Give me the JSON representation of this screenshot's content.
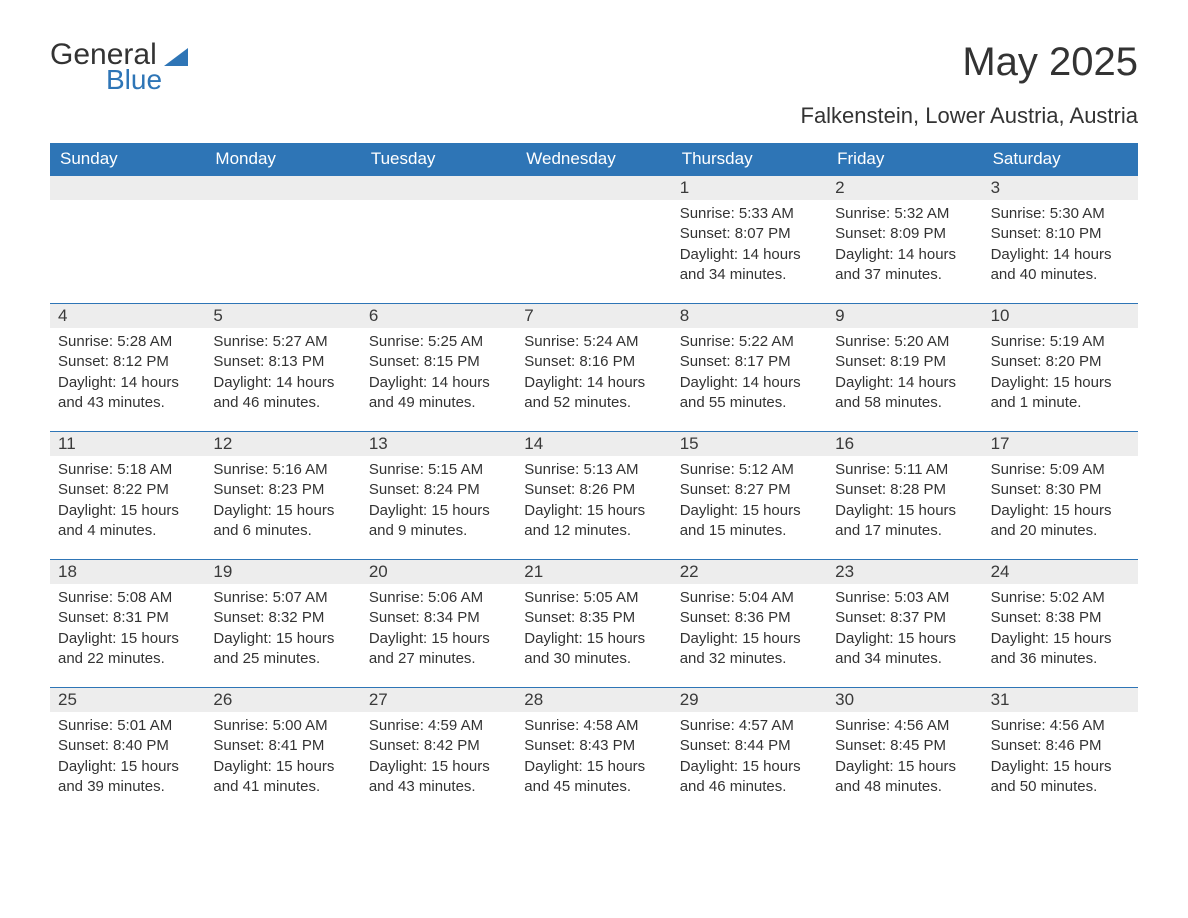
{
  "logo": {
    "word1": "General",
    "word2": "Blue"
  },
  "title": "May 2025",
  "location": "Falkenstein, Lower Austria, Austria",
  "colors": {
    "header_bg": "#2e75b6",
    "header_text": "#ffffff",
    "daynum_bg": "#ededed",
    "border": "#2e75b6",
    "body_bg": "#ffffff",
    "text": "#333333",
    "logo_accent": "#2e75b6"
  },
  "layout": {
    "columns": 7,
    "rows": 5,
    "cell_body_fontsize": 15,
    "header_fontsize": 17,
    "title_fontsize": 40,
    "location_fontsize": 22
  },
  "day_headers": [
    "Sunday",
    "Monday",
    "Tuesday",
    "Wednesday",
    "Thursday",
    "Friday",
    "Saturday"
  ],
  "weeks": [
    [
      {
        "n": "",
        "sunrise": "",
        "sunset": "",
        "daylight": ""
      },
      {
        "n": "",
        "sunrise": "",
        "sunset": "",
        "daylight": ""
      },
      {
        "n": "",
        "sunrise": "",
        "sunset": "",
        "daylight": ""
      },
      {
        "n": "",
        "sunrise": "",
        "sunset": "",
        "daylight": ""
      },
      {
        "n": "1",
        "sunrise": "Sunrise: 5:33 AM",
        "sunset": "Sunset: 8:07 PM",
        "daylight": "Daylight: 14 hours and 34 minutes."
      },
      {
        "n": "2",
        "sunrise": "Sunrise: 5:32 AM",
        "sunset": "Sunset: 8:09 PM",
        "daylight": "Daylight: 14 hours and 37 minutes."
      },
      {
        "n": "3",
        "sunrise": "Sunrise: 5:30 AM",
        "sunset": "Sunset: 8:10 PM",
        "daylight": "Daylight: 14 hours and 40 minutes."
      }
    ],
    [
      {
        "n": "4",
        "sunrise": "Sunrise: 5:28 AM",
        "sunset": "Sunset: 8:12 PM",
        "daylight": "Daylight: 14 hours and 43 minutes."
      },
      {
        "n": "5",
        "sunrise": "Sunrise: 5:27 AM",
        "sunset": "Sunset: 8:13 PM",
        "daylight": "Daylight: 14 hours and 46 minutes."
      },
      {
        "n": "6",
        "sunrise": "Sunrise: 5:25 AM",
        "sunset": "Sunset: 8:15 PM",
        "daylight": "Daylight: 14 hours and 49 minutes."
      },
      {
        "n": "7",
        "sunrise": "Sunrise: 5:24 AM",
        "sunset": "Sunset: 8:16 PM",
        "daylight": "Daylight: 14 hours and 52 minutes."
      },
      {
        "n": "8",
        "sunrise": "Sunrise: 5:22 AM",
        "sunset": "Sunset: 8:17 PM",
        "daylight": "Daylight: 14 hours and 55 minutes."
      },
      {
        "n": "9",
        "sunrise": "Sunrise: 5:20 AM",
        "sunset": "Sunset: 8:19 PM",
        "daylight": "Daylight: 14 hours and 58 minutes."
      },
      {
        "n": "10",
        "sunrise": "Sunrise: 5:19 AM",
        "sunset": "Sunset: 8:20 PM",
        "daylight": "Daylight: 15 hours and 1 minute."
      }
    ],
    [
      {
        "n": "11",
        "sunrise": "Sunrise: 5:18 AM",
        "sunset": "Sunset: 8:22 PM",
        "daylight": "Daylight: 15 hours and 4 minutes."
      },
      {
        "n": "12",
        "sunrise": "Sunrise: 5:16 AM",
        "sunset": "Sunset: 8:23 PM",
        "daylight": "Daylight: 15 hours and 6 minutes."
      },
      {
        "n": "13",
        "sunrise": "Sunrise: 5:15 AM",
        "sunset": "Sunset: 8:24 PM",
        "daylight": "Daylight: 15 hours and 9 minutes."
      },
      {
        "n": "14",
        "sunrise": "Sunrise: 5:13 AM",
        "sunset": "Sunset: 8:26 PM",
        "daylight": "Daylight: 15 hours and 12 minutes."
      },
      {
        "n": "15",
        "sunrise": "Sunrise: 5:12 AM",
        "sunset": "Sunset: 8:27 PM",
        "daylight": "Daylight: 15 hours and 15 minutes."
      },
      {
        "n": "16",
        "sunrise": "Sunrise: 5:11 AM",
        "sunset": "Sunset: 8:28 PM",
        "daylight": "Daylight: 15 hours and 17 minutes."
      },
      {
        "n": "17",
        "sunrise": "Sunrise: 5:09 AM",
        "sunset": "Sunset: 8:30 PM",
        "daylight": "Daylight: 15 hours and 20 minutes."
      }
    ],
    [
      {
        "n": "18",
        "sunrise": "Sunrise: 5:08 AM",
        "sunset": "Sunset: 8:31 PM",
        "daylight": "Daylight: 15 hours and 22 minutes."
      },
      {
        "n": "19",
        "sunrise": "Sunrise: 5:07 AM",
        "sunset": "Sunset: 8:32 PM",
        "daylight": "Daylight: 15 hours and 25 minutes."
      },
      {
        "n": "20",
        "sunrise": "Sunrise: 5:06 AM",
        "sunset": "Sunset: 8:34 PM",
        "daylight": "Daylight: 15 hours and 27 minutes."
      },
      {
        "n": "21",
        "sunrise": "Sunrise: 5:05 AM",
        "sunset": "Sunset: 8:35 PM",
        "daylight": "Daylight: 15 hours and 30 minutes."
      },
      {
        "n": "22",
        "sunrise": "Sunrise: 5:04 AM",
        "sunset": "Sunset: 8:36 PM",
        "daylight": "Daylight: 15 hours and 32 minutes."
      },
      {
        "n": "23",
        "sunrise": "Sunrise: 5:03 AM",
        "sunset": "Sunset: 8:37 PM",
        "daylight": "Daylight: 15 hours and 34 minutes."
      },
      {
        "n": "24",
        "sunrise": "Sunrise: 5:02 AM",
        "sunset": "Sunset: 8:38 PM",
        "daylight": "Daylight: 15 hours and 36 minutes."
      }
    ],
    [
      {
        "n": "25",
        "sunrise": "Sunrise: 5:01 AM",
        "sunset": "Sunset: 8:40 PM",
        "daylight": "Daylight: 15 hours and 39 minutes."
      },
      {
        "n": "26",
        "sunrise": "Sunrise: 5:00 AM",
        "sunset": "Sunset: 8:41 PM",
        "daylight": "Daylight: 15 hours and 41 minutes."
      },
      {
        "n": "27",
        "sunrise": "Sunrise: 4:59 AM",
        "sunset": "Sunset: 8:42 PM",
        "daylight": "Daylight: 15 hours and 43 minutes."
      },
      {
        "n": "28",
        "sunrise": "Sunrise: 4:58 AM",
        "sunset": "Sunset: 8:43 PM",
        "daylight": "Daylight: 15 hours and 45 minutes."
      },
      {
        "n": "29",
        "sunrise": "Sunrise: 4:57 AM",
        "sunset": "Sunset: 8:44 PM",
        "daylight": "Daylight: 15 hours and 46 minutes."
      },
      {
        "n": "30",
        "sunrise": "Sunrise: 4:56 AM",
        "sunset": "Sunset: 8:45 PM",
        "daylight": "Daylight: 15 hours and 48 minutes."
      },
      {
        "n": "31",
        "sunrise": "Sunrise: 4:56 AM",
        "sunset": "Sunset: 8:46 PM",
        "daylight": "Daylight: 15 hours and 50 minutes."
      }
    ]
  ]
}
